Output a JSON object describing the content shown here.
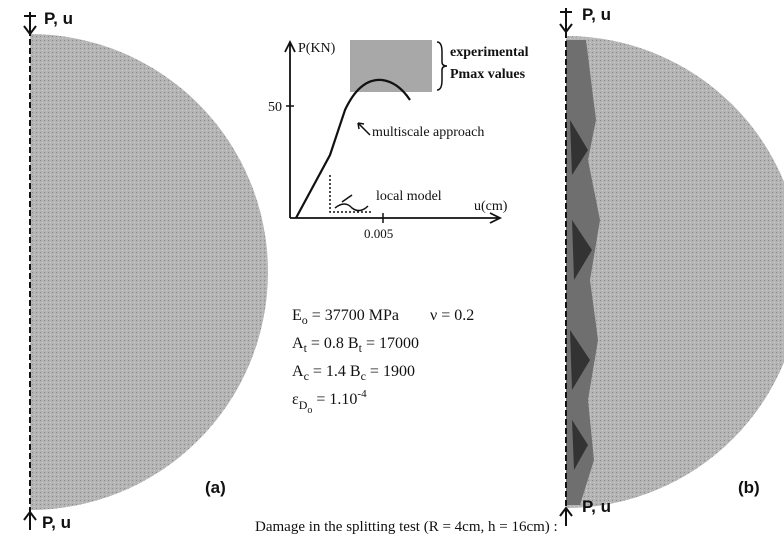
{
  "panel_a": {
    "load_top": "P, u",
    "load_bottom": "P, u",
    "label": "(a)"
  },
  "panel_b": {
    "load_top": "P, u",
    "load_bottom": "P, u",
    "label": "(b)"
  },
  "inset": {
    "y_label": "P(KN)",
    "x_label": "u(cm)",
    "y_tick": "50",
    "x_tick": "0.005",
    "experimental": [
      "experimental",
      "Pmax values"
    ],
    "multiscale": "multiscale approach",
    "local": "local model"
  },
  "params": [
    [
      "E",
      "o",
      " = 37700 MPa",
      "ν = 0.2"
    ],
    [
      "A",
      "t",
      " = 0.8  B",
      "t",
      " = 17000"
    ],
    [
      "A",
      "c",
      " = 1.4  B",
      "c",
      " = 1900"
    ],
    [
      "ε",
      "D",
      "o",
      " = 1.10",
      "-4"
    ]
  ],
  "caption": "Damage in the splitting test (R = 4cm, h = 16cm) :"
}
